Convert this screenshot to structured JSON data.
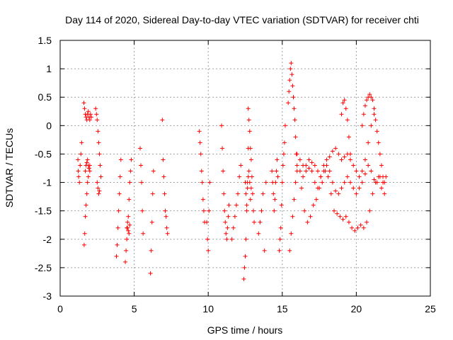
{
  "chart_data": {
    "type": "scatter",
    "title": "Day 114 of 2020, Sidereal Day-to-day VTEC variation (SDTVAR) for receiver chti",
    "xlabel": "GPS time / hours",
    "ylabel": "SDTVAR / TECUs",
    "xlim": [
      0,
      25
    ],
    "ylim": [
      -3,
      1.5
    ],
    "xticks": [
      0,
      5,
      10,
      15,
      20,
      25
    ],
    "xtick_labels": [
      "0",
      "5",
      "10",
      "15",
      "20",
      "25"
    ],
    "yticks": [
      -3,
      -2.5,
      -2,
      -1.5,
      -1,
      -0.5,
      0,
      0.5,
      1,
      1.5
    ],
    "ytick_labels": [
      "-3",
      "-2.5",
      "-2",
      "-1.5",
      "-1",
      "-0.5",
      "0",
      "0.5",
      "1",
      "1.5"
    ],
    "grid": true,
    "marker": "+",
    "marker_color": "#ff0000",
    "series": [
      {
        "name": "SDTVAR",
        "x": [
          1.2,
          1.22,
          1.25,
          1.3,
          1.35,
          1.4,
          1.45,
          1.6,
          1.65,
          1.7,
          1.75,
          1.8,
          1.85,
          1.9,
          1.95,
          2.0,
          2.05,
          2.1,
          1.62,
          1.66,
          1.7,
          1.75,
          1.8,
          1.85,
          1.9,
          1.95,
          2.0,
          1.7,
          1.75,
          1.8,
          1.85,
          1.9,
          1.95,
          2.0,
          2.4,
          2.45,
          2.5,
          2.55,
          2.6,
          2.65,
          2.7,
          2.75,
          2.5,
          2.55,
          2.6,
          2.65,
          3.8,
          3.85,
          3.9,
          3.95,
          4.0,
          4.05,
          4.1,
          4.4,
          4.45,
          4.5,
          4.55,
          4.6,
          4.65,
          4.7,
          4.75,
          4.8,
          4.5,
          4.55,
          4.6,
          4.65,
          4.7,
          5.4,
          5.45,
          5.5,
          5.55,
          5.6,
          6.1,
          6.15,
          6.2,
          6.25,
          6.3,
          6.9,
          6.95,
          7.0,
          7.05,
          7.1,
          7.15,
          7.2,
          7.25,
          9.4,
          9.45,
          9.5,
          9.55,
          9.6,
          9.65,
          9.7,
          9.75,
          9.9,
          9.95,
          10.0,
          10.05,
          10.1,
          10.9,
          10.95,
          11.0,
          11.05,
          11.1,
          11.15,
          11.2,
          11.25,
          11.3,
          11.35,
          11.4,
          11.6,
          11.7,
          11.8,
          11.9,
          12.0,
          12.1,
          12.2,
          12.4,
          12.45,
          12.5,
          12.55,
          12.6,
          12.65,
          12.7,
          12.5,
          12.55,
          12.6,
          12.65,
          12.7,
          12.75,
          12.8,
          12.85,
          12.9,
          12.7,
          12.75,
          12.8,
          12.85,
          12.9,
          12.95,
          13.0,
          13.05,
          13.1,
          13.4,
          13.5,
          13.6,
          13.7,
          13.8,
          13.9,
          14.3,
          14.35,
          14.4,
          14.45,
          14.5,
          14.55,
          14.6,
          14.65,
          14.7,
          14.8,
          14.85,
          14.9,
          14.95,
          15.0,
          15.05,
          15.1,
          15.15,
          15.2,
          15.4,
          15.45,
          15.5,
          15.55,
          15.6,
          15.65,
          15.7,
          15.75,
          15.8,
          15.85,
          15.9,
          15.95,
          16.0,
          15.5,
          15.6,
          15.7,
          15.8,
          15.9,
          16.0,
          16.3,
          16.5,
          16.7,
          16.9,
          17.1,
          17.3,
          17.5,
          17.7,
          17.9,
          18.1,
          18.3,
          18.5,
          18.7,
          18.9,
          19.1,
          19.3,
          19.5,
          19.7,
          19.9,
          20.1,
          20.3,
          20.5,
          20.7,
          20.9,
          21.1,
          21.3,
          21.5,
          21.7,
          21.9,
          16.2,
          16.4,
          16.6,
          16.8,
          17.0,
          17.2,
          17.4,
          17.6,
          17.8,
          18.0,
          18.2,
          18.4,
          18.6,
          18.8,
          19.0,
          19.2,
          19.4,
          19.6,
          19.8,
          20.0,
          20.2,
          20.4,
          20.6,
          20.8,
          21.0,
          21.2,
          21.4,
          21.6,
          21.8,
          16.0,
          16.2,
          16.4,
          16.6,
          16.8,
          17.0,
          17.2,
          17.4,
          17.6,
          17.8,
          18.0,
          18.2,
          18.4,
          18.6,
          18.8,
          19.0,
          19.2,
          19.4,
          19.6,
          19.8,
          20.0,
          20.2,
          20.4,
          20.6,
          20.8,
          21.0,
          21.2,
          19.0,
          19.1,
          19.2,
          19.3,
          19.4,
          19.5,
          19.6,
          20.4,
          20.5,
          20.6,
          20.7,
          20.8,
          20.9,
          21.0,
          21.1,
          21.2,
          21.3,
          21.4,
          21.5,
          21.6,
          21.7,
          21.8,
          21.9,
          22.0
        ],
        "y": [
          -0.6,
          -0.8,
          -0.9,
          -1.0,
          -0.7,
          -0.5,
          -0.3,
          0.4,
          0.3,
          0.2,
          0.15,
          0.1,
          0.2,
          0.25,
          0.15,
          0.1,
          0.2,
          0.15,
          -2.1,
          -1.9,
          -1.6,
          -1.4,
          -1.2,
          -1.0,
          -0.9,
          -0.75,
          -0.7,
          -0.8,
          -0.7,
          -0.65,
          -0.6,
          -0.7,
          -0.75,
          -0.8,
          0.3,
          0.2,
          0.1,
          -0.1,
          -0.3,
          -0.5,
          -0.7,
          -0.9,
          -1.0,
          -1.1,
          -1.2,
          -1.15,
          -2.3,
          -2.1,
          -1.8,
          -1.5,
          -1.2,
          -0.9,
          -0.6,
          -2.4,
          -2.2,
          -2.0,
          -1.8,
          -1.6,
          -1.3,
          -1.0,
          -0.8,
          -0.6,
          -1.8,
          -1.7,
          -1.85,
          -1.9,
          -1.75,
          -0.4,
          -0.7,
          -1.0,
          -1.5,
          -1.9,
          -2.6,
          -2.2,
          -1.7,
          -1.2,
          -0.8,
          0.1,
          -0.6,
          -0.9,
          -1.2,
          -1.5,
          -1.6,
          -1.8,
          -1.9,
          -0.1,
          -0.3,
          -0.5,
          -0.8,
          -1.0,
          -1.3,
          -1.5,
          -1.7,
          -1.7,
          -2.0,
          -2.2,
          -1.5,
          -1.0,
          0.0,
          -0.4,
          -0.8,
          -1.2,
          -1.5,
          -1.7,
          -1.9,
          -2.0,
          -1.8,
          -1.6,
          -1.4,
          -2.0,
          -1.8,
          -1.6,
          -1.4,
          -1.2,
          -0.9,
          -0.7,
          -2.7,
          -2.5,
          -2.3,
          -2.0,
          -1.5,
          -1.0,
          -0.4,
          -1.0,
          -1.2,
          -1.4,
          -1.1,
          -0.9,
          -0.8,
          -1.0,
          -1.3,
          -1.1,
          0.3,
          0.1,
          -0.1,
          -0.4,
          -0.6,
          -0.9,
          -1.2,
          -1.5,
          -1.7,
          -1.9,
          -1.7,
          -1.5,
          -1.2,
          -2.2,
          -1.0,
          -0.8,
          -1.0,
          -1.2,
          -1.5,
          -1.3,
          -1.0,
          -0.8,
          -0.6,
          -0.9,
          -2.2,
          -2.0,
          -1.8,
          -1.4,
          -1.0,
          -0.7,
          -0.5,
          -0.3,
          0.0,
          0.4,
          0.6,
          0.8,
          1.0,
          1.1,
          0.9,
          0.7,
          0.5,
          0.3,
          0.1,
          -0.2,
          -0.5,
          -0.7,
          -2.2,
          -1.9,
          -1.6,
          -1.3,
          -1.0,
          -0.8,
          -1.1,
          -1.5,
          -1.7,
          -1.6,
          -1.4,
          -1.3,
          -1.1,
          -1.0,
          -0.8,
          -0.9,
          -1.2,
          -1.5,
          -1.55,
          -1.6,
          -1.65,
          -1.6,
          -1.7,
          -1.8,
          -1.85,
          -1.8,
          -1.75,
          -1.8,
          -1.7,
          -1.5,
          -1.2,
          -1.0,
          -0.9,
          -1.1,
          -1.2,
          -0.8,
          -0.9,
          -0.7,
          -0.6,
          -0.8,
          -1.0,
          -1.1,
          -0.9,
          -0.7,
          -0.6,
          -0.8,
          -1.0,
          -1.15,
          -1.2,
          -1.1,
          -1.0,
          -0.9,
          -1.0,
          -1.1,
          -1.2,
          -1.1,
          -1.0,
          -0.85,
          -0.7,
          -0.8,
          -0.95,
          -1.0,
          -0.9,
          -1.0,
          -0.5,
          -0.6,
          -0.7,
          -0.8,
          -0.75,
          -0.65,
          -0.7,
          -0.8,
          -0.9,
          -0.8,
          -0.7,
          -0.55,
          -0.45,
          -0.4,
          -0.5,
          -0.6,
          -0.55,
          -0.5,
          -0.6,
          -0.7,
          -0.8,
          -0.9,
          -0.8,
          -0.6,
          -0.3,
          0.0,
          0.2,
          0.2,
          0.4,
          0.45,
          0.3,
          0.1,
          -0.2,
          -0.5,
          0.0,
          0.2,
          0.35,
          0.45,
          0.5,
          0.55,
          0.5,
          0.45,
          0.3,
          0.1,
          -0.1,
          -0.3,
          -0.5,
          -0.7,
          -0.9,
          -1.0,
          -0.9
        ]
      }
    ]
  }
}
